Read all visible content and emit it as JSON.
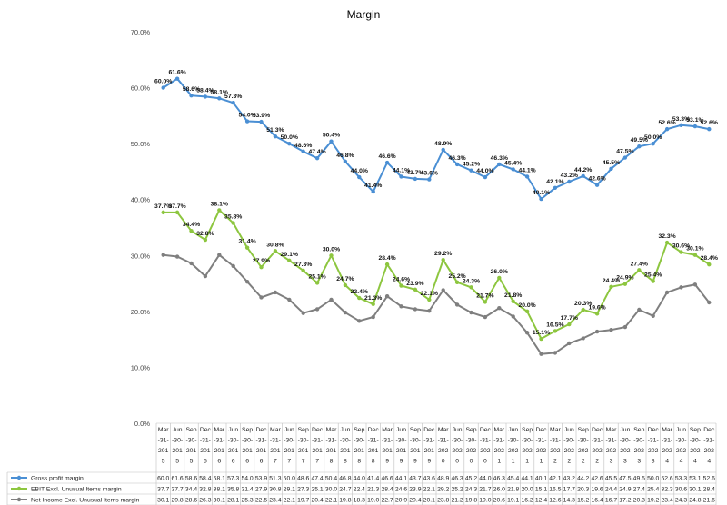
{
  "chart_data": {
    "type": "line",
    "title": "Margin",
    "xlabel": "",
    "ylabel": "",
    "ylim": [
      0,
      70
    ],
    "yticks": [
      "0.0%",
      "10.0%",
      "20.0%",
      "30.0%",
      "40.0%",
      "50.0%",
      "60.0%",
      "70.0%"
    ],
    "grid": false,
    "legend": "bottom-table",
    "categories": [
      "Mar-31-2015",
      "Jun-30-2015",
      "Sep-30-2015",
      "Dec-31-2015",
      "Mar-31-2016",
      "Jun-30-2016",
      "Sep-30-2016",
      "Dec-31-2016",
      "Mar-31-2017",
      "Jun-30-2017",
      "Sep-30-2017",
      "Dec-31-2017",
      "Mar-31-2018",
      "Jun-30-2018",
      "Sep-30-2018",
      "Dec-31-2018",
      "Mar-31-2019",
      "Jun-30-2019",
      "Sep-30-2019",
      "Dec-31-2019",
      "Mar-31-2020",
      "Jun-30-2020",
      "Sep-30-2020",
      "Dec-31-2020",
      "Mar-31-2021",
      "Jun-30-2021",
      "Sep-30-2021",
      "Dec-31-2021",
      "Mar-31-2022",
      "Jun-30-2022",
      "Sep-30-2022",
      "Dec-31-2022",
      "Mar-31-2023",
      "Jun-30-2023",
      "Sep-30-2023",
      "Dec-31-2023",
      "Mar-31-2024",
      "Jun-30-2024",
      "Sep-30-2024",
      "Dec-31-2024"
    ],
    "series": [
      {
        "name": "Gross profit margin",
        "color": "#4a8fd4",
        "labels_shown": true,
        "values": [
          60.0,
          61.6,
          58.6,
          58.4,
          58.1,
          57.3,
          54.0,
          53.9,
          51.3,
          50.0,
          48.6,
          47.4,
          50.4,
          46.8,
          44.0,
          41.4,
          46.6,
          44.1,
          43.7,
          43.6,
          48.9,
          46.3,
          45.2,
          44.0,
          46.3,
          45.4,
          44.1,
          40.1,
          42.1,
          43.2,
          44.2,
          42.6,
          45.5,
          47.5,
          49.5,
          50.0,
          52.6,
          53.3,
          53.1,
          52.6
        ]
      },
      {
        "name": "EBIT Excl. Unusual Items margin",
        "color": "#8dc63f",
        "labels_shown": true,
        "values": [
          37.7,
          37.7,
          34.4,
          32.8,
          38.1,
          35.8,
          31.4,
          27.9,
          30.8,
          29.1,
          27.3,
          25.1,
          30.0,
          24.7,
          22.4,
          21.3,
          28.4,
          24.6,
          23.9,
          22.1,
          29.2,
          25.2,
          24.3,
          21.7,
          26.0,
          21.8,
          20.0,
          15.1,
          16.5,
          17.7,
          20.3,
          19.6,
          24.4,
          24.9,
          27.4,
          25.4,
          32.3,
          30.6,
          30.1,
          28.4
        ]
      },
      {
        "name": "Net Income Excl. Unusual Items margin",
        "color": "#7f7f7f",
        "labels_shown": false,
        "values": [
          30.1,
          29.8,
          28.6,
          26.3,
          30.1,
          28.1,
          25.3,
          22.5,
          23.4,
          22.1,
          19.7,
          20.4,
          22.1,
          19.8,
          18.3,
          19.0,
          22.7,
          20.9,
          20.4,
          20.1,
          23.8,
          21.2,
          19.8,
          19.0,
          20.6,
          19.1,
          16.2,
          12.4,
          12.6,
          14.3,
          15.2,
          16.4,
          16.7,
          17.2,
          20.3,
          19.2,
          23.4,
          24.3,
          24.8,
          21.6
        ]
      }
    ]
  }
}
